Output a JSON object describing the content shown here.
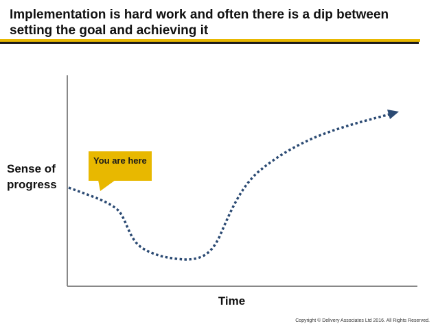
{
  "title": "Implementation is hard work and often there is a dip between setting the goal and achieving it",
  "y_axis_label": "Sense of progress",
  "x_axis_label": "Time",
  "callout": {
    "text": "You are here",
    "color": "#e8b800"
  },
  "curve": {
    "color": "#2b4a73",
    "style": "dotted",
    "arrow": "end"
  },
  "footer": {
    "copyright": "Copyright © Delivery Associates Ltd 2016. All Rights Reserved."
  },
  "colors": {
    "accent_yellow": "#e8b800",
    "rule_dark": "#1a1a1a",
    "axis_gray": "#888888"
  }
}
